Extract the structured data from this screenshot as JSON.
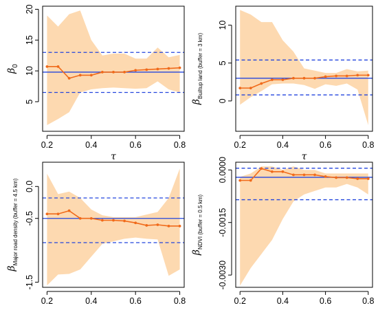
{
  "colors": {
    "band": "#fdd9b0",
    "line": "#f06a1a",
    "ref": "#2244dd",
    "axis": "#000000"
  },
  "chart_data": [
    {
      "type": "line",
      "xlabel": "τ",
      "ylabel_main": "β",
      "ylabel_sub": "0",
      "xlim": [
        0.18,
        0.82
      ],
      "ylim": [
        0.2,
        20.5
      ],
      "xticks": [
        "0.2",
        "0.4",
        "0.6",
        "0.8"
      ],
      "yticks": [
        "5",
        "10",
        "15",
        "20"
      ],
      "x": [
        0.2,
        0.25,
        0.3,
        0.35,
        0.4,
        0.45,
        0.5,
        0.55,
        0.6,
        0.65,
        0.7,
        0.75,
        0.8
      ],
      "estimate": [
        10.7,
        10.7,
        8.8,
        9.3,
        9.3,
        9.8,
        9.8,
        9.8,
        10.1,
        10.2,
        10.3,
        10.4,
        10.5
      ],
      "band_upper": [
        19.0,
        17.2,
        19.2,
        19.8,
        15.0,
        12.5,
        12.8,
        12.8,
        12.0,
        12.0,
        13.8,
        12.2,
        12.6
      ],
      "band_lower": [
        1.2,
        2.2,
        3.3,
        6.5,
        7.0,
        7.2,
        7.3,
        7.2,
        7.1,
        7.2,
        8.3,
        7.0,
        6.5
      ],
      "ref_solid": 9.8,
      "ref_dashed": [
        6.5,
        13.0
      ]
    },
    {
      "type": "line",
      "xlabel": "τ",
      "ylabel_main": "β",
      "ylabel_sub": "Builtup land (buffer = 3 km)",
      "xlim": [
        0.18,
        0.82
      ],
      "ylim": [
        -4.0,
        12.5
      ],
      "xticks": [
        "0.2",
        "0.4",
        "0.6",
        "0.8"
      ],
      "yticks": [
        "0",
        "5",
        "10"
      ],
      "x": [
        0.2,
        0.25,
        0.3,
        0.35,
        0.4,
        0.45,
        0.5,
        0.55,
        0.6,
        0.65,
        0.7,
        0.75,
        0.8
      ],
      "estimate": [
        1.7,
        1.7,
        2.3,
        2.8,
        2.8,
        3.0,
        3.0,
        3.0,
        3.2,
        3.3,
        3.3,
        3.4,
        3.4
      ],
      "band_upper": [
        12.0,
        11.4,
        10.4,
        10.4,
        8.0,
        6.5,
        4.3,
        4.0,
        3.7,
        3.7,
        4.2,
        3.9,
        4.0
      ],
      "band_lower": [
        -0.5,
        0.5,
        1.3,
        2.2,
        2.3,
        2.3,
        2.1,
        1.6,
        2.2,
        2.0,
        2.3,
        1.5,
        -3.2
      ],
      "ref_solid": 3.0,
      "ref_dashed": [
        0.8,
        5.4
      ]
    },
    {
      "type": "line",
      "xlabel": "τ",
      "ylabel_main": "β",
      "ylabel_sub": "Major road density (buffer = 4.5 km)",
      "xlim": [
        0.18,
        0.82
      ],
      "ylim": [
        -1.58,
        0.38
      ],
      "xticks": [
        "0.2",
        "0.4",
        "0.6",
        "0.8"
      ],
      "yticks": [
        "-1.5",
        "-0.5",
        "0.0"
      ],
      "ytick_values": [
        -1.5,
        -0.5,
        0.0
      ],
      "x": [
        0.2,
        0.25,
        0.3,
        0.35,
        0.4,
        0.45,
        0.5,
        0.55,
        0.6,
        0.65,
        0.7,
        0.75,
        0.8
      ],
      "estimate": [
        -0.43,
        -0.43,
        -0.38,
        -0.5,
        -0.5,
        -0.53,
        -0.53,
        -0.54,
        -0.57,
        -0.61,
        -0.6,
        -0.62,
        -0.62
      ],
      "band_upper": [
        0.2,
        -0.12,
        -0.08,
        -0.18,
        -0.36,
        -0.45,
        -0.48,
        -0.48,
        -0.48,
        -0.44,
        -0.4,
        -0.18,
        0.28
      ],
      "band_lower": [
        -1.55,
        -1.38,
        -1.37,
        -1.3,
        -1.1,
        -0.9,
        -0.86,
        -0.82,
        -0.8,
        -0.82,
        -0.83,
        -1.4,
        -1.3
      ],
      "ref_solid": -0.5,
      "ref_dashed": [
        -0.88,
        -0.18
      ]
    },
    {
      "type": "line",
      "xlabel": "τ",
      "ylabel_main": "β",
      "ylabel_sub": "NDVI (buffer = 0.5 km)",
      "xlim": [
        0.18,
        0.82
      ],
      "ylim": [
        -0.00335,
        0.00022
      ],
      "xticks": [
        "0.2",
        "0.4",
        "0.6",
        "0.8"
      ],
      "yticks": [
        "-0.0030",
        "-0.0015",
        "0.0000"
      ],
      "ytick_values": [
        -0.003,
        -0.0015,
        0.0
      ],
      "x": [
        0.2,
        0.25,
        0.3,
        0.35,
        0.4,
        0.45,
        0.5,
        0.55,
        0.6,
        0.65,
        0.7,
        0.75,
        0.8
      ],
      "estimate": [
        -0.0003,
        -0.0003,
        4e-05,
        -5e-05,
        -5e-05,
        -0.00014,
        -0.00014,
        -0.00014,
        -0.00019,
        -0.00022,
        -0.00022,
        -0.00025,
        -0.00025
      ],
      "band_upper": [
        -0.0002,
        -0.0001,
        0.0001,
        0.0001,
        0.0,
        0.0001,
        0.0,
        0.0,
        -0.0001,
        -0.0001,
        -0.0001,
        -0.0001,
        -0.0001
      ],
      "band_lower": [
        -0.0033,
        -0.0028,
        -0.0024,
        -0.002,
        -0.0014,
        -0.0009,
        -0.0007,
        -0.0006,
        -0.0005,
        -0.0005,
        -0.0004,
        -0.0005,
        -0.0007
      ],
      "ref_solid": -0.00021,
      "ref_dashed": [
        -0.00085,
        5e-05
      ]
    }
  ]
}
